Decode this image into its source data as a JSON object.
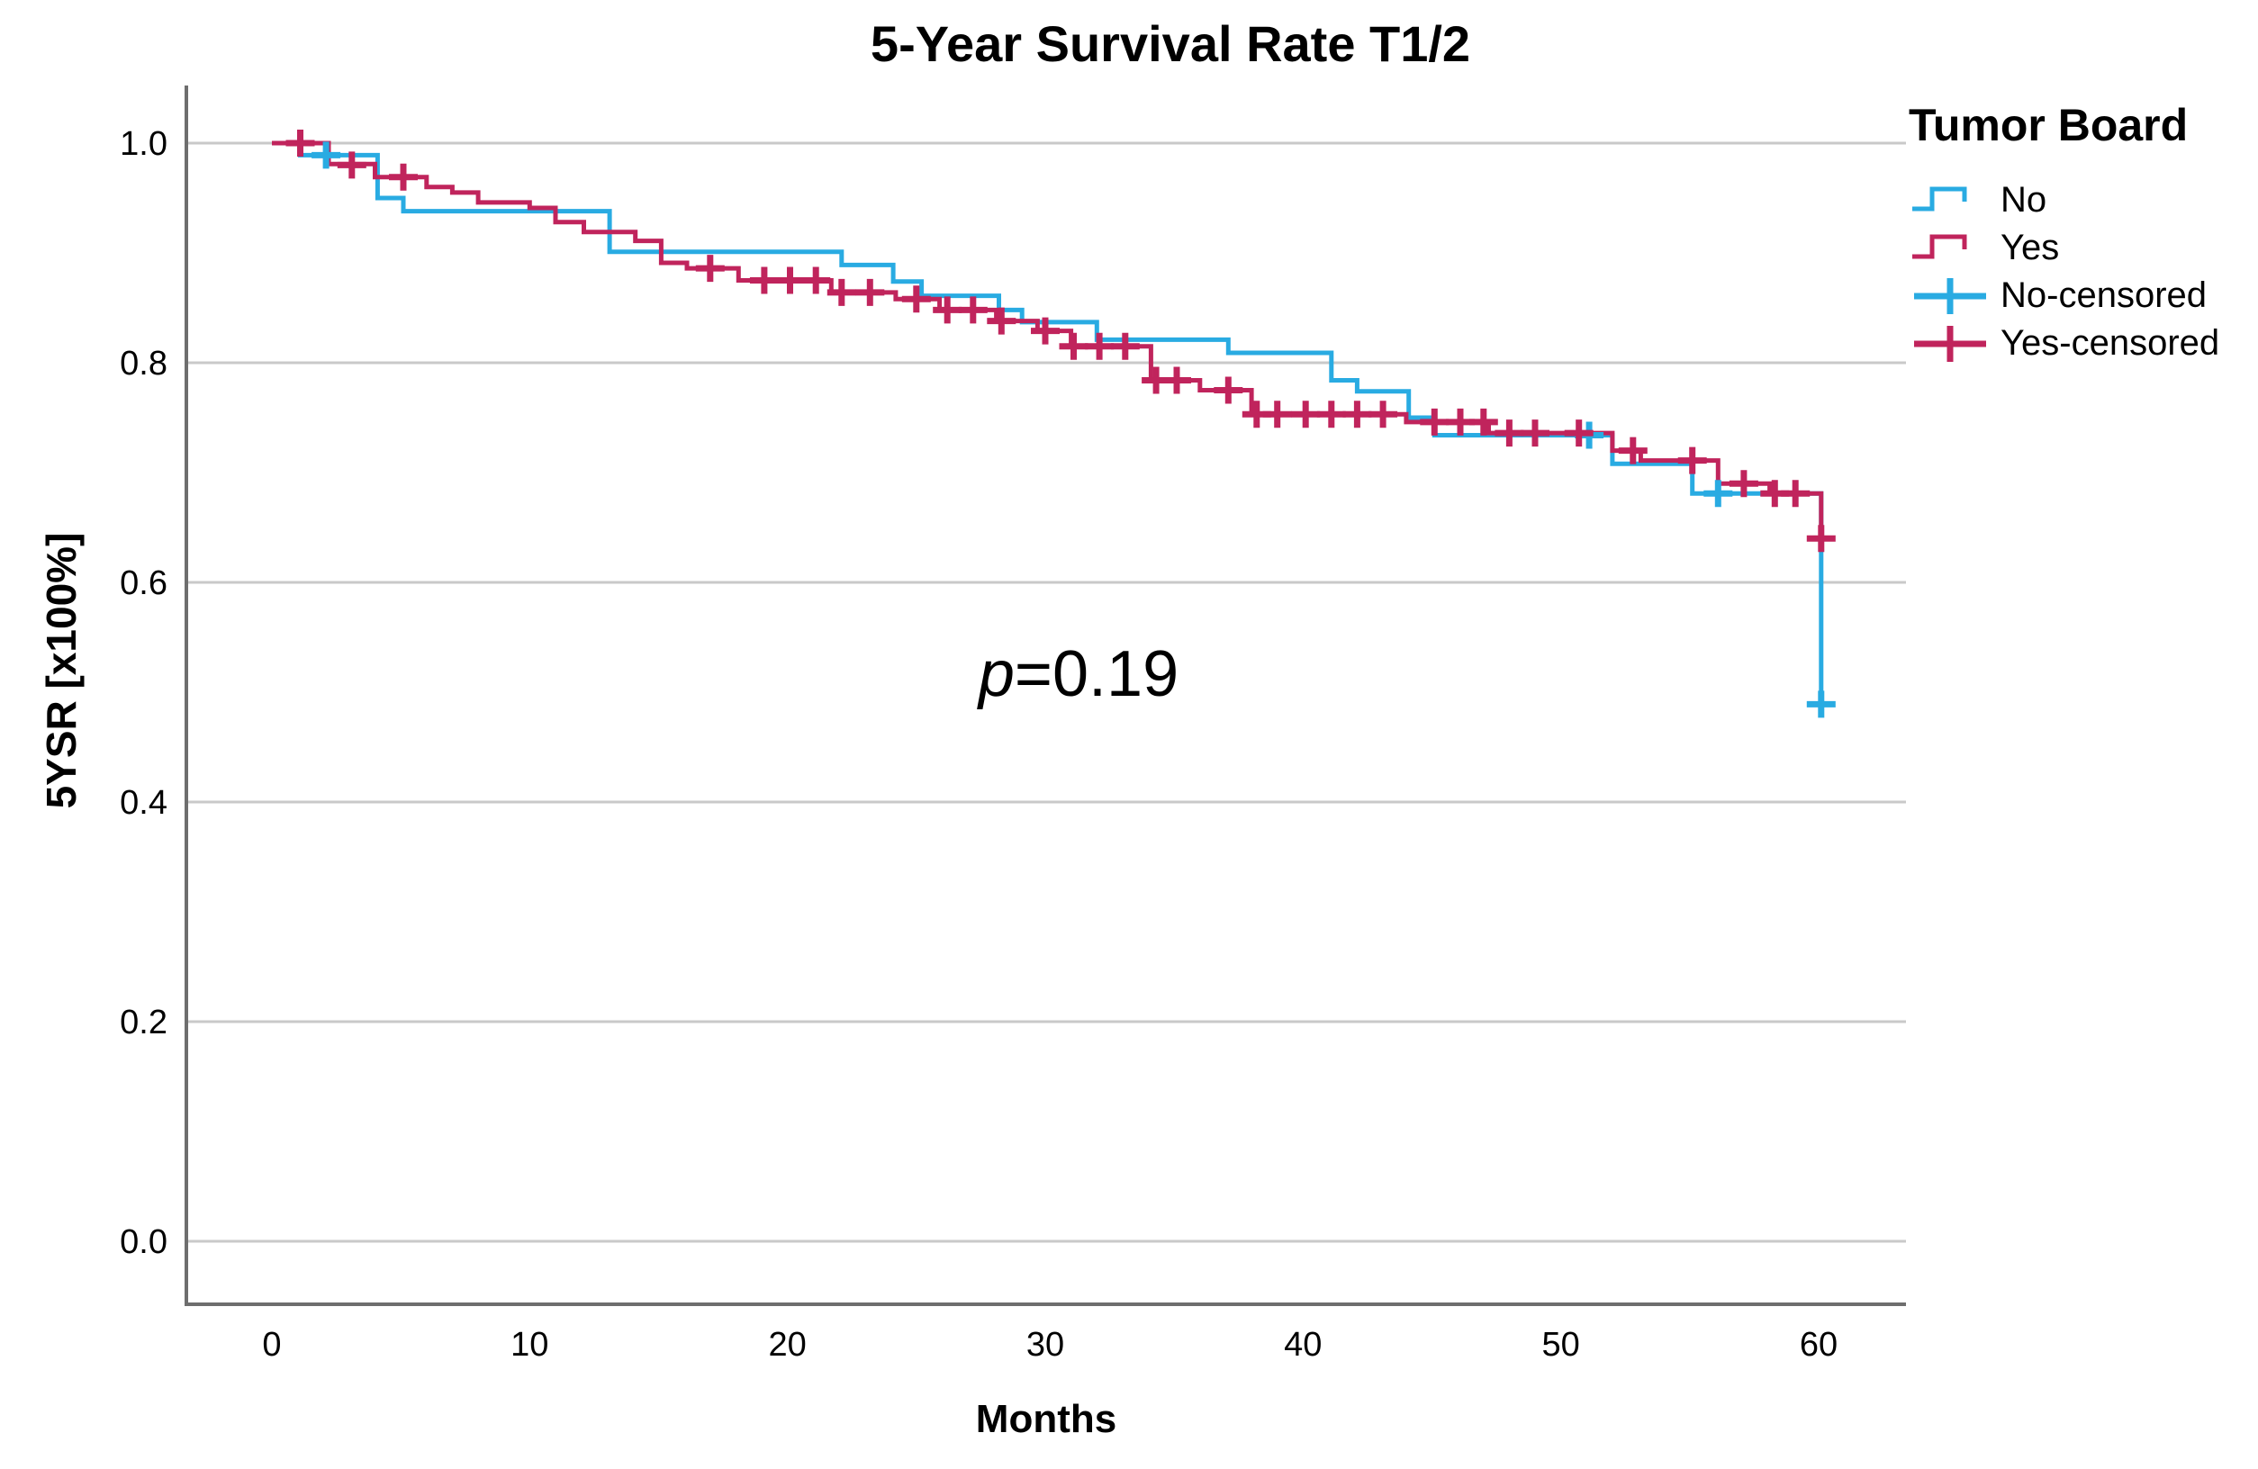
{
  "chart_data": {
    "type": "line",
    "subtype": "kaplan-meier-step",
    "title": "5-Year Survival Rate T1/2",
    "xlabel": "Months",
    "ylabel": "5YSR [x100%]",
    "x_ticks": [
      0,
      10,
      20,
      30,
      40,
      50,
      60
    ],
    "y_ticks": [
      "1.0",
      "0.8",
      "0.6",
      "0.4",
      "0.2",
      "0.0"
    ],
    "y_tick_values": [
      1.0,
      0.8,
      0.6,
      0.4,
      0.2,
      0.0
    ],
    "xlim": [
      -3.3,
      63.4
    ],
    "ylim": [
      -0.057,
      1.052
    ],
    "grid": true,
    "annotation": {
      "symbol": "p",
      "value": "=0.19"
    },
    "colors": {
      "grid": "#C9C9C9",
      "axis": "#6E6E6E",
      "text": "#000000",
      "no_group": "#29ABE2",
      "yes_group": "#C0245C"
    },
    "legend": {
      "title": "Tumor Board",
      "position": "right",
      "items": [
        {
          "label": "No",
          "type": "step",
          "color": "#29ABE2"
        },
        {
          "label": "Yes",
          "type": "step",
          "color": "#C0245C"
        },
        {
          "label": "No-censored",
          "type": "plus",
          "color": "#29ABE2"
        },
        {
          "label": "Yes-censored",
          "type": "plus",
          "color": "#C0245C"
        }
      ]
    },
    "series": [
      {
        "name": "No",
        "color": "#29ABE2",
        "steps": [
          [
            0,
            1.0
          ],
          [
            1.1,
            0.989
          ],
          [
            4.1,
            0.95
          ],
          [
            5.1,
            0.938
          ],
          [
            13.1,
            0.901
          ],
          [
            22.1,
            0.889
          ],
          [
            24.1,
            0.874
          ],
          [
            25.2,
            0.861
          ],
          [
            28.2,
            0.848
          ],
          [
            29.1,
            0.837
          ],
          [
            32.0,
            0.821
          ],
          [
            37.1,
            0.809
          ],
          [
            41.1,
            0.784
          ],
          [
            42.1,
            0.774
          ],
          [
            44.1,
            0.75
          ],
          [
            45.1,
            0.734
          ],
          [
            52.0,
            0.708
          ],
          [
            55.1,
            0.681
          ],
          [
            60.1,
            0.489
          ]
        ],
        "censored": [
          [
            2.1,
            0.989
          ],
          [
            51.1,
            0.734
          ],
          [
            56.1,
            0.681
          ],
          [
            60.1,
            0.489
          ]
        ]
      },
      {
        "name": "Yes",
        "color": "#C0245C",
        "steps": [
          [
            0,
            1.0
          ],
          [
            2.2,
            0.981
          ],
          [
            4.0,
            0.969
          ],
          [
            6.0,
            0.96
          ],
          [
            7.0,
            0.955
          ],
          [
            8.0,
            0.946
          ],
          [
            10.0,
            0.941
          ],
          [
            11.0,
            0.928
          ],
          [
            12.1,
            0.919
          ],
          [
            14.1,
            0.911
          ],
          [
            15.1,
            0.891
          ],
          [
            16.1,
            0.886
          ],
          [
            18.1,
            0.875
          ],
          [
            21.7,
            0.864
          ],
          [
            24.2,
            0.858
          ],
          [
            25.9,
            0.848
          ],
          [
            28.1,
            0.838
          ],
          [
            29.7,
            0.829
          ],
          [
            31.0,
            0.815
          ],
          [
            34.1,
            0.784
          ],
          [
            36.0,
            0.775
          ],
          [
            38.0,
            0.753
          ],
          [
            44.0,
            0.746
          ],
          [
            47.2,
            0.736
          ],
          [
            52.0,
            0.72
          ],
          [
            53.1,
            0.711
          ],
          [
            56.1,
            0.69
          ],
          [
            58.1,
            0.681
          ],
          [
            60.1,
            0.64
          ]
        ],
        "censored": [
          [
            1.1,
            1.0
          ],
          [
            3.1,
            0.98
          ],
          [
            5.1,
            0.969
          ],
          [
            17.0,
            0.886
          ],
          [
            19.1,
            0.875
          ],
          [
            20.1,
            0.875
          ],
          [
            21.1,
            0.875
          ],
          [
            22.1,
            0.864
          ],
          [
            23.2,
            0.864
          ],
          [
            25.0,
            0.858
          ],
          [
            26.2,
            0.848
          ],
          [
            27.2,
            0.848
          ],
          [
            28.3,
            0.838
          ],
          [
            30.0,
            0.829
          ],
          [
            31.1,
            0.815
          ],
          [
            32.1,
            0.815
          ],
          [
            33.1,
            0.815
          ],
          [
            34.3,
            0.784
          ],
          [
            35.1,
            0.784
          ],
          [
            37.1,
            0.775
          ],
          [
            38.2,
            0.753
          ],
          [
            39.0,
            0.753
          ],
          [
            40.1,
            0.753
          ],
          [
            41.1,
            0.753
          ],
          [
            42.1,
            0.753
          ],
          [
            43.1,
            0.753
          ],
          [
            45.1,
            0.746
          ],
          [
            46.1,
            0.746
          ],
          [
            47.0,
            0.746
          ],
          [
            48.0,
            0.736
          ],
          [
            49.0,
            0.736
          ],
          [
            50.7,
            0.736
          ],
          [
            52.8,
            0.72
          ],
          [
            55.1,
            0.711
          ],
          [
            57.1,
            0.69
          ],
          [
            58.3,
            0.681
          ],
          [
            59.1,
            0.681
          ],
          [
            60.1,
            0.64
          ]
        ]
      }
    ]
  }
}
